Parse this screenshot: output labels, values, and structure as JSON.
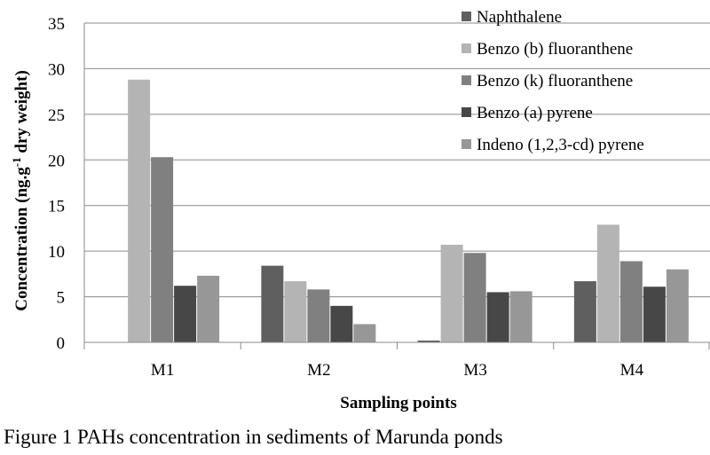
{
  "caption": "Figure 1 PAHs concentration in sediments of Marunda ponds",
  "chart_data": {
    "type": "bar",
    "categories": [
      "M1",
      "M2",
      "M3",
      "M4"
    ],
    "series": [
      {
        "name": "Naphthalene",
        "color": "#5f5f5f",
        "values": [
          0,
          8.4,
          0.2,
          6.7
        ]
      },
      {
        "name": "Benzo (b) fluoranthene",
        "color": "#b4b4b4",
        "values": [
          28.8,
          6.7,
          10.7,
          12.9
        ]
      },
      {
        "name": "Benzo (k) fluoranthene",
        "color": "#808080",
        "values": [
          20.3,
          5.8,
          9.8,
          8.9
        ]
      },
      {
        "name": "Benzo (a) pyrene",
        "color": "#474747",
        "values": [
          6.2,
          4.0,
          5.5,
          6.1
        ]
      },
      {
        "name": "Indeno (1,2,3-cd) pyrene",
        "color": "#979797",
        "values": [
          7.3,
          2.0,
          5.6,
          8.0
        ]
      }
    ],
    "xlabel": "Sampling points",
    "ylabel": "Concentration (ng.g-1 dry weight)",
    "ylabel_parts": {
      "before": "Concentration (ng.g",
      "sup": "-1",
      "after": " dry weight)"
    },
    "ylim": [
      0,
      35
    ],
    "yticks": [
      0,
      5,
      10,
      15,
      20,
      25,
      30,
      35
    ],
    "grid": true,
    "legend_position": "top-right"
  }
}
